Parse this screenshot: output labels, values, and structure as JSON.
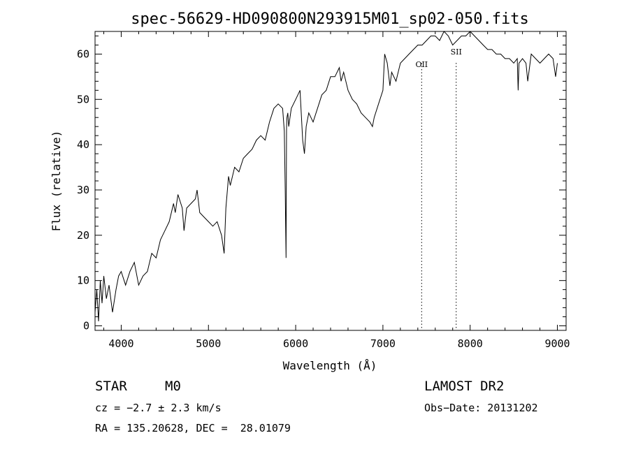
{
  "chart_data": {
    "type": "line",
    "title": "spec-56629-HD090800N293915M01_sp02-050.fits",
    "xlabel": "Wavelength (Å)",
    "ylabel": "Flux (relative)",
    "xlim": [
      3700,
      9100
    ],
    "ylim": [
      -1,
      65
    ],
    "x_ticks": [
      4000,
      5000,
      6000,
      7000,
      8000,
      9000
    ],
    "y_ticks": [
      0,
      10,
      20,
      30,
      40,
      50,
      60
    ],
    "grid": false,
    "series": [
      {
        "x": [
          3700,
          3720,
          3740,
          3760,
          3780,
          3800,
          3830,
          3860,
          3900,
          3940,
          3970,
          4000,
          4050,
          4100,
          4150,
          4200,
          4250,
          4300,
          4350,
          4400,
          4450,
          4500,
          4550,
          4600,
          4620,
          4650,
          4700,
          4720,
          4750,
          4800,
          4850,
          4870,
          4900,
          4950,
          5000,
          5050,
          5100,
          5150,
          5180,
          5200,
          5230,
          5250,
          5300,
          5350,
          5400,
          5450,
          5500,
          5550,
          5600,
          5650,
          5700,
          5750,
          5800,
          5850,
          5870,
          5880,
          5890,
          5895,
          5900,
          5910,
          5920,
          5950,
          6000,
          6050,
          6080,
          6100,
          6120,
          6150,
          6200,
          6250,
          6300,
          6350,
          6400,
          6450,
          6500,
          6520,
          6550,
          6600,
          6650,
          6700,
          6750,
          6800,
          6850,
          6880,
          6900,
          6950,
          7000,
          7020,
          7050,
          7080,
          7100,
          7150,
          7200,
          7250,
          7300,
          7350,
          7400,
          7450,
          7500,
          7550,
          7600,
          7650,
          7700,
          7750,
          7800,
          7850,
          7900,
          7950,
          8000,
          8050,
          8100,
          8150,
          8200,
          8250,
          8300,
          8350,
          8400,
          8450,
          8500,
          8540,
          8550,
          8560,
          8600,
          8640,
          8660,
          8700,
          8750,
          8800,
          8850,
          8900,
          8950,
          8980,
          9000
        ],
        "values": [
          3,
          8,
          1,
          10,
          5,
          11,
          6,
          9,
          3,
          8,
          11,
          12,
          9,
          12,
          14,
          9,
          11,
          12,
          16,
          15,
          19,
          21,
          23,
          27,
          25,
          29,
          26,
          21,
          26,
          27,
          28,
          30,
          25,
          24,
          23,
          22,
          23,
          20,
          16,
          26,
          33,
          31,
          35,
          34,
          37,
          38,
          39,
          41,
          42,
          41,
          45,
          48,
          49,
          48,
          43,
          30,
          15,
          44,
          46,
          47,
          44,
          48,
          50,
          52,
          41,
          38,
          44,
          47,
          45,
          48,
          51,
          52,
          55,
          55,
          57,
          54,
          56,
          52,
          50,
          49,
          47,
          46,
          45,
          44,
          46,
          49,
          52,
          60,
          58,
          53,
          56,
          54,
          58,
          59,
          60,
          61,
          62,
          62,
          63,
          64,
          64,
          63,
          65,
          64,
          62,
          63,
          64,
          64,
          65,
          64,
          63,
          62,
          61,
          61,
          60,
          60,
          59,
          59,
          58,
          59,
          52,
          58,
          59,
          58,
          54,
          60,
          59,
          58,
          59,
          60,
          59,
          55,
          58
        ]
      }
    ],
    "annotations": [
      {
        "label": "OII",
        "x": 7444
      },
      {
        "label": "SII",
        "x": 7840
      }
    ]
  },
  "info": {
    "object_type": "STAR",
    "subclass": "M0",
    "survey": "LAMOST DR2",
    "velocity": "cz = −2.7 ± 2.3 km/s",
    "obs_date": "Obs−Date: 20131202",
    "coords": "RA = 135.20628, DEC =  28.01079"
  }
}
